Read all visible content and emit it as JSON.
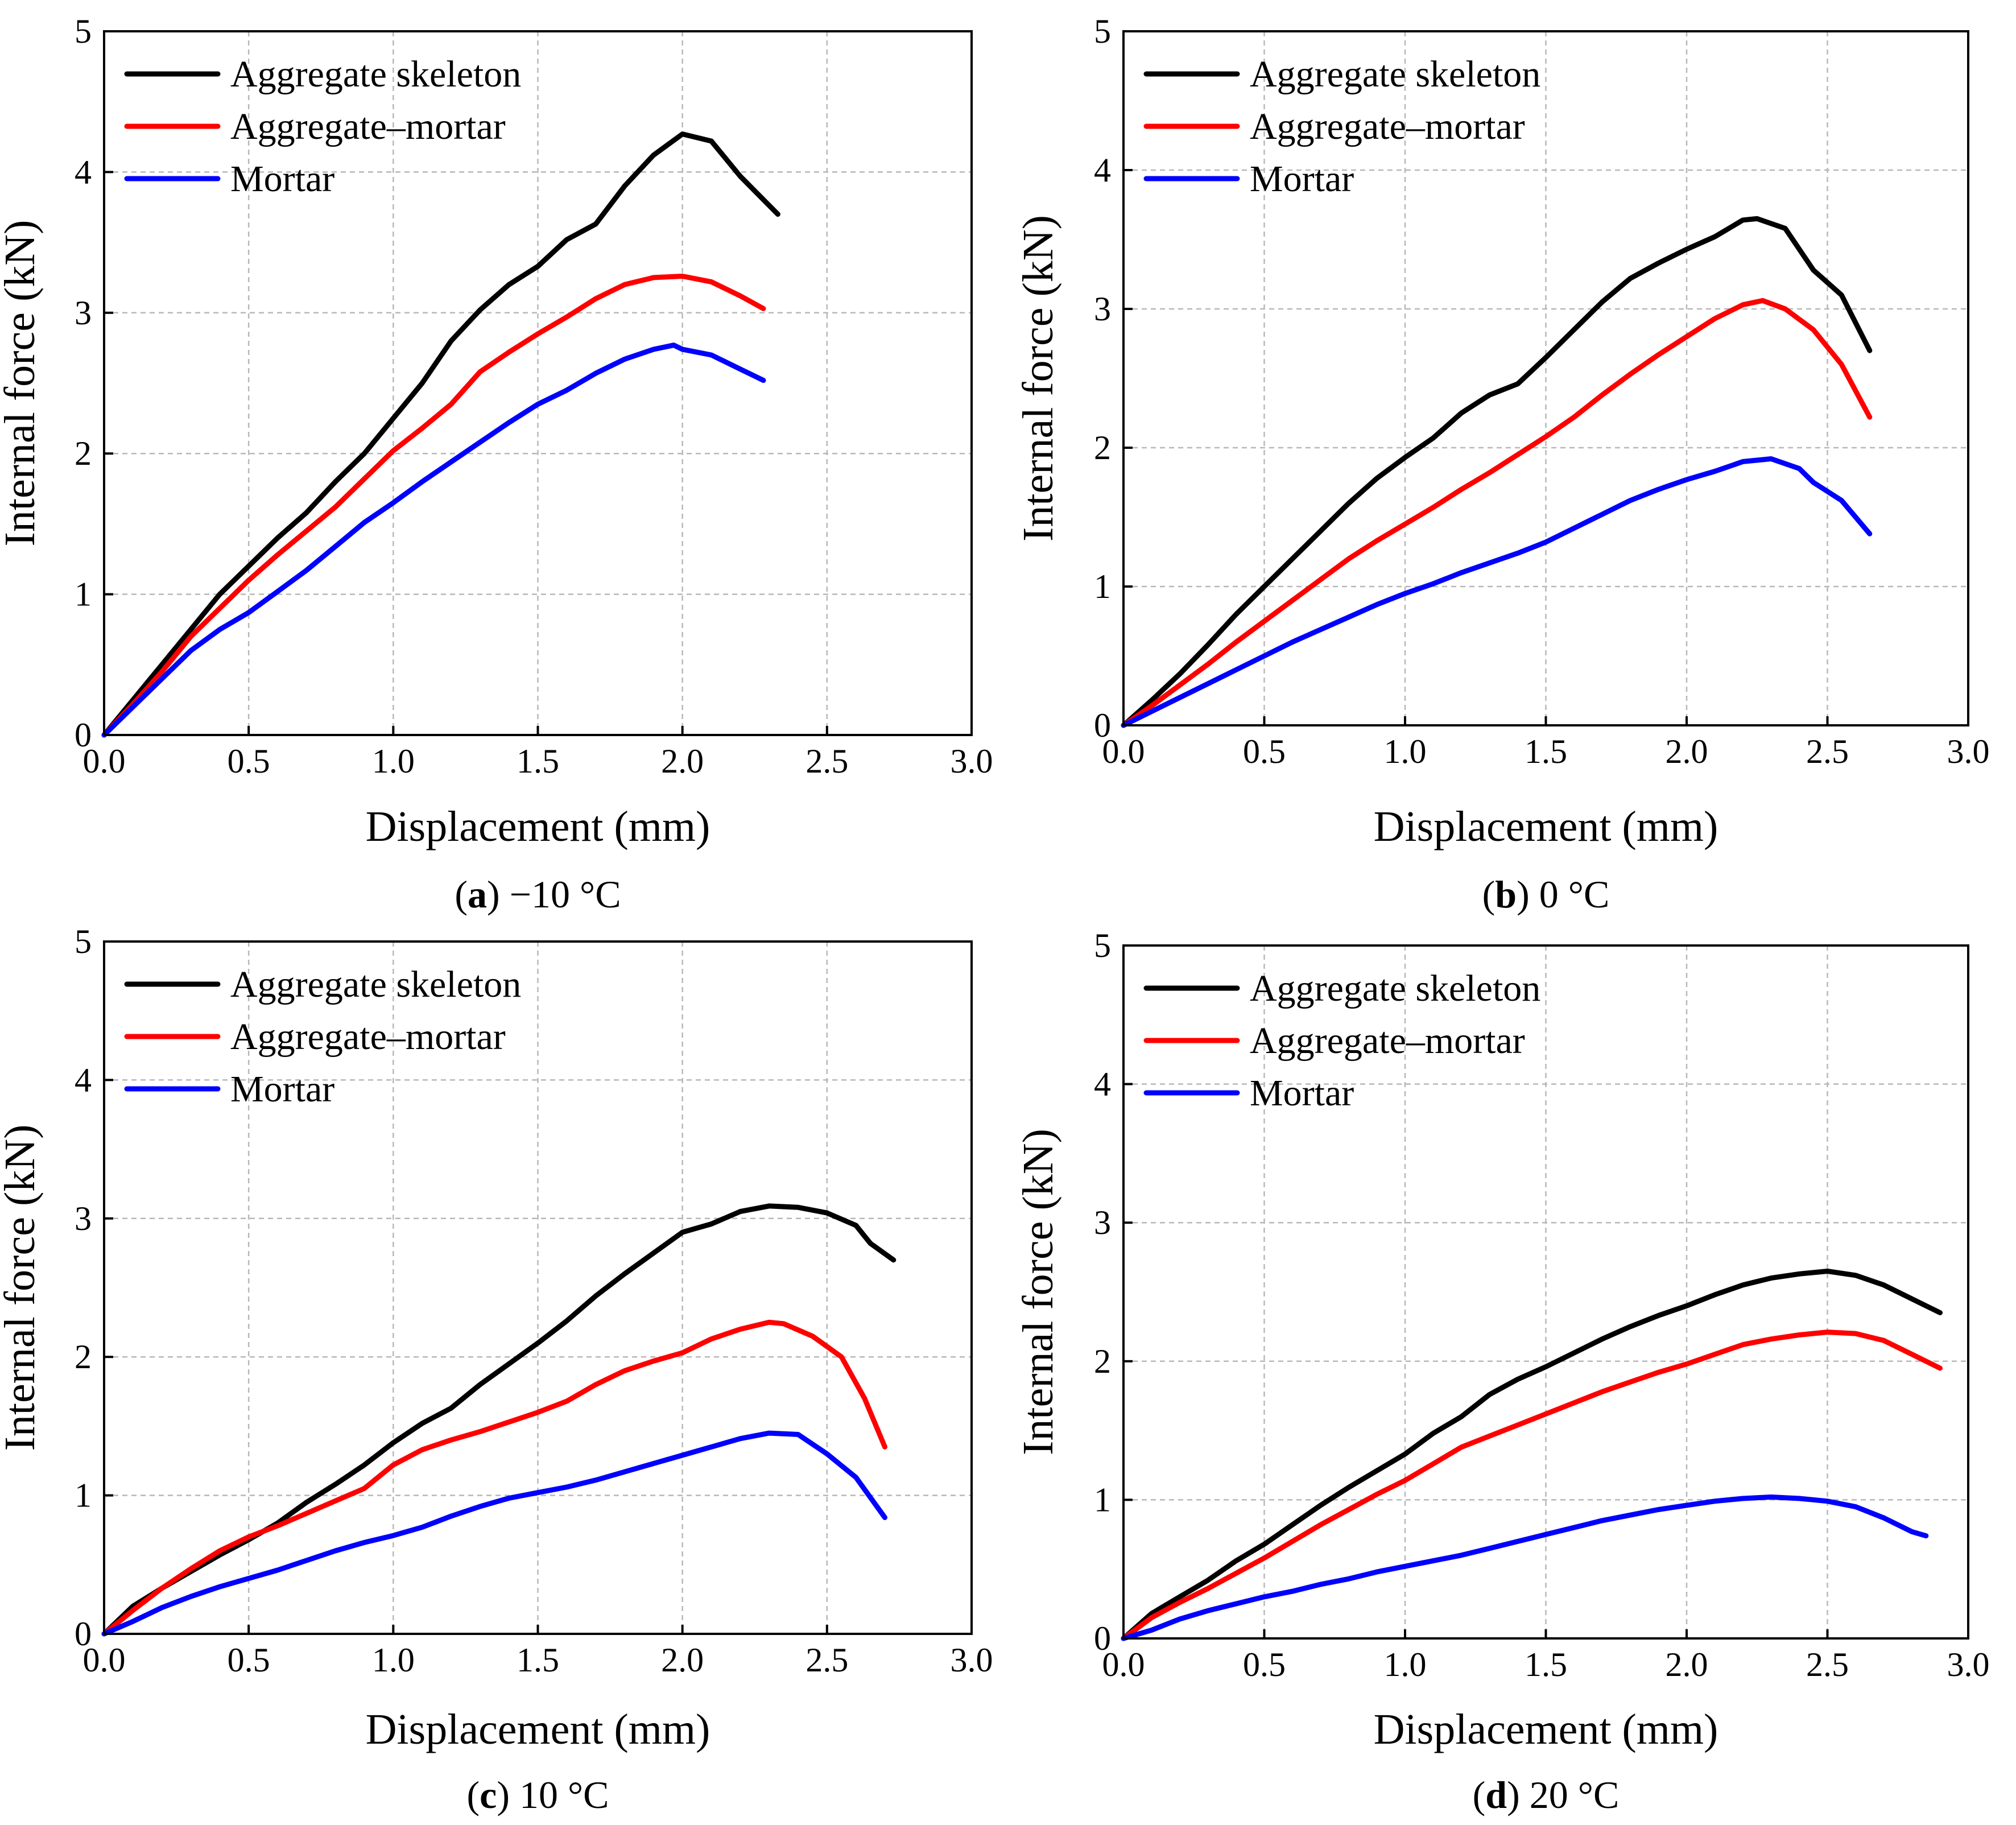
{
  "chart_data": [
    {
      "type": "line",
      "caption_letter": "a",
      "caption_text": " −10 °C",
      "xlabel": "Displacement (mm)",
      "ylabel": "Internal force (kN)",
      "xlim": [
        0,
        3
      ],
      "ylim": [
        0,
        5
      ],
      "xticks": [
        "0.0",
        "0.5",
        "1.0",
        "1.5",
        "2.0",
        "2.5",
        "3.0"
      ],
      "yticks": [
        "0",
        "1",
        "2",
        "3",
        "4",
        "5"
      ],
      "grid": true,
      "legend_position": "top-left",
      "series": [
        {
          "name": "Aggregate skeleton",
          "color": "#000000",
          "x": [
            0,
            0.1,
            0.2,
            0.3,
            0.4,
            0.5,
            0.6,
            0.7,
            0.8,
            0.9,
            1.0,
            1.1,
            1.2,
            1.3,
            1.4,
            1.5,
            1.6,
            1.7,
            1.8,
            1.9,
            2.0,
            2.1,
            2.2,
            2.33
          ],
          "y": [
            0,
            0.25,
            0.5,
            0.75,
            1.0,
            1.2,
            1.4,
            1.58,
            1.8,
            2.0,
            2.25,
            2.5,
            2.8,
            3.02,
            3.2,
            3.33,
            3.52,
            3.63,
            3.9,
            4.12,
            4.27,
            4.22,
            3.97,
            3.7
          ]
        },
        {
          "name": "Aggregate–mortar",
          "color": "#ff0000",
          "x": [
            0,
            0.1,
            0.2,
            0.3,
            0.4,
            0.5,
            0.6,
            0.7,
            0.8,
            0.9,
            1.0,
            1.1,
            1.2,
            1.3,
            1.4,
            1.5,
            1.6,
            1.7,
            1.8,
            1.9,
            2.0,
            2.1,
            2.2,
            2.28
          ],
          "y": [
            0,
            0.22,
            0.45,
            0.7,
            0.9,
            1.1,
            1.28,
            1.45,
            1.62,
            1.82,
            2.02,
            2.18,
            2.35,
            2.58,
            2.72,
            2.85,
            2.97,
            3.1,
            3.2,
            3.25,
            3.26,
            3.22,
            3.12,
            3.03
          ]
        },
        {
          "name": "Mortar",
          "color": "#0000ff",
          "x": [
            0,
            0.1,
            0.2,
            0.3,
            0.4,
            0.5,
            0.6,
            0.7,
            0.8,
            0.9,
            1.0,
            1.1,
            1.2,
            1.3,
            1.4,
            1.5,
            1.6,
            1.7,
            1.8,
            1.9,
            1.97,
            2.0,
            2.1,
            2.2,
            2.28
          ],
          "y": [
            0,
            0.2,
            0.4,
            0.6,
            0.75,
            0.87,
            1.02,
            1.17,
            1.34,
            1.51,
            1.65,
            1.8,
            1.94,
            2.08,
            2.22,
            2.35,
            2.45,
            2.57,
            2.67,
            2.74,
            2.77,
            2.74,
            2.7,
            2.6,
            2.52
          ]
        }
      ]
    },
    {
      "type": "line",
      "caption_letter": "b",
      "caption_text": " 0 °C",
      "xlabel": "Displacement (mm)",
      "ylabel": "Internal force (kN)",
      "xlim": [
        0,
        3
      ],
      "ylim": [
        0,
        5
      ],
      "xticks": [
        "0.0",
        "0.5",
        "1.0",
        "1.5",
        "2.0",
        "2.5",
        "3.0"
      ],
      "yticks": [
        "0",
        "1",
        "2",
        "3",
        "4",
        "5"
      ],
      "grid": true,
      "legend_position": "top-left",
      "series": [
        {
          "name": "Aggregate skeleton",
          "color": "#000000",
          "x": [
            0,
            0.1,
            0.2,
            0.3,
            0.4,
            0.5,
            0.6,
            0.7,
            0.8,
            0.9,
            1.0,
            1.1,
            1.2,
            1.3,
            1.4,
            1.5,
            1.6,
            1.7,
            1.8,
            1.9,
            2.0,
            2.1,
            2.2,
            2.25,
            2.35,
            2.45,
            2.55,
            2.65
          ],
          "y": [
            0,
            0.18,
            0.37,
            0.58,
            0.8,
            1.0,
            1.2,
            1.4,
            1.6,
            1.78,
            1.93,
            2.07,
            2.25,
            2.38,
            2.46,
            2.65,
            2.85,
            3.05,
            3.22,
            3.33,
            3.43,
            3.52,
            3.64,
            3.65,
            3.58,
            3.28,
            3.1,
            2.7
          ]
        },
        {
          "name": "Aggregate–mortar",
          "color": "#ff0000",
          "x": [
            0,
            0.1,
            0.2,
            0.3,
            0.4,
            0.5,
            0.6,
            0.7,
            0.8,
            0.9,
            1.0,
            1.1,
            1.2,
            1.3,
            1.4,
            1.5,
            1.6,
            1.7,
            1.8,
            1.9,
            2.0,
            2.1,
            2.2,
            2.27,
            2.35,
            2.45,
            2.55,
            2.65
          ],
          "y": [
            0,
            0.14,
            0.29,
            0.44,
            0.6,
            0.75,
            0.9,
            1.05,
            1.2,
            1.33,
            1.45,
            1.57,
            1.7,
            1.82,
            1.95,
            2.08,
            2.22,
            2.38,
            2.53,
            2.67,
            2.8,
            2.93,
            3.03,
            3.06,
            3.0,
            2.85,
            2.6,
            2.22
          ]
        },
        {
          "name": "Mortar",
          "color": "#0000ff",
          "x": [
            0,
            0.1,
            0.2,
            0.3,
            0.4,
            0.5,
            0.6,
            0.7,
            0.8,
            0.9,
            1.0,
            1.1,
            1.2,
            1.3,
            1.4,
            1.5,
            1.6,
            1.7,
            1.8,
            1.9,
            2.0,
            2.1,
            2.2,
            2.3,
            2.4,
            2.45,
            2.55,
            2.65
          ],
          "y": [
            0,
            0.1,
            0.2,
            0.3,
            0.4,
            0.5,
            0.6,
            0.69,
            0.78,
            0.87,
            0.95,
            1.02,
            1.1,
            1.17,
            1.24,
            1.32,
            1.42,
            1.52,
            1.62,
            1.7,
            1.77,
            1.83,
            1.9,
            1.92,
            1.85,
            1.75,
            1.62,
            1.38
          ]
        }
      ]
    },
    {
      "type": "line",
      "caption_letter": "c",
      "caption_text": " 10 °C",
      "xlabel": "Displacement (mm)",
      "ylabel": "Internal force (kN)",
      "xlim": [
        0,
        3
      ],
      "ylim": [
        0,
        5
      ],
      "xticks": [
        "0.0",
        "0.5",
        "1.0",
        "1.5",
        "2.0",
        "2.5",
        "3.0"
      ],
      "yticks": [
        "0",
        "1",
        "2",
        "3",
        "4",
        "5"
      ],
      "grid": true,
      "legend_position": "top-left",
      "series": [
        {
          "name": "Aggregate skeleton",
          "color": "#000000",
          "x": [
            0,
            0.1,
            0.2,
            0.3,
            0.4,
            0.5,
            0.6,
            0.7,
            0.8,
            0.9,
            1.0,
            1.1,
            1.2,
            1.3,
            1.4,
            1.5,
            1.6,
            1.7,
            1.8,
            1.9,
            2.0,
            2.1,
            2.2,
            2.3,
            2.4,
            2.5,
            2.6,
            2.65,
            2.73
          ],
          "y": [
            0,
            0.2,
            0.33,
            0.45,
            0.57,
            0.68,
            0.8,
            0.95,
            1.08,
            1.22,
            1.38,
            1.52,
            1.63,
            1.8,
            1.95,
            2.1,
            2.26,
            2.44,
            2.6,
            2.75,
            2.9,
            2.96,
            3.05,
            3.09,
            3.08,
            3.04,
            2.95,
            2.82,
            2.7
          ]
        },
        {
          "name": "Aggregate–mortar",
          "color": "#ff0000",
          "x": [
            0,
            0.1,
            0.2,
            0.3,
            0.4,
            0.5,
            0.6,
            0.7,
            0.8,
            0.9,
            1.0,
            1.1,
            1.2,
            1.3,
            1.4,
            1.5,
            1.6,
            1.7,
            1.8,
            1.9,
            2.0,
            2.1,
            2.2,
            2.3,
            2.35,
            2.45,
            2.55,
            2.63,
            2.7
          ],
          "y": [
            0,
            0.17,
            0.33,
            0.47,
            0.6,
            0.7,
            0.78,
            0.87,
            0.96,
            1.05,
            1.22,
            1.33,
            1.4,
            1.46,
            1.53,
            1.6,
            1.68,
            1.8,
            1.9,
            1.97,
            2.03,
            2.13,
            2.2,
            2.25,
            2.24,
            2.15,
            2.0,
            1.7,
            1.35
          ]
        },
        {
          "name": "Mortar",
          "color": "#0000ff",
          "x": [
            0,
            0.1,
            0.2,
            0.3,
            0.4,
            0.5,
            0.6,
            0.7,
            0.8,
            0.9,
            1.0,
            1.1,
            1.2,
            1.3,
            1.4,
            1.5,
            1.6,
            1.7,
            1.8,
            1.9,
            2.0,
            2.1,
            2.2,
            2.3,
            2.4,
            2.5,
            2.6,
            2.7
          ],
          "y": [
            0,
            0.09,
            0.19,
            0.27,
            0.34,
            0.4,
            0.46,
            0.53,
            0.6,
            0.66,
            0.71,
            0.77,
            0.85,
            0.92,
            0.98,
            1.02,
            1.06,
            1.11,
            1.17,
            1.23,
            1.29,
            1.35,
            1.41,
            1.45,
            1.44,
            1.3,
            1.13,
            0.84
          ]
        }
      ]
    },
    {
      "type": "line",
      "caption_letter": "d",
      "caption_text": " 20 °C",
      "xlabel": "Displacement (mm)",
      "ylabel": "Internal force (kN)",
      "xlim": [
        0,
        3
      ],
      "ylim": [
        0,
        5
      ],
      "xticks": [
        "0.0",
        "0.5",
        "1.0",
        "1.5",
        "2.0",
        "2.5",
        "3.0"
      ],
      "yticks": [
        "0",
        "1",
        "2",
        "3",
        "4",
        "5"
      ],
      "grid": true,
      "legend_position": "top-left",
      "series": [
        {
          "name": "Aggregate skeleton",
          "color": "#000000",
          "x": [
            0,
            0.1,
            0.2,
            0.3,
            0.4,
            0.5,
            0.6,
            0.7,
            0.8,
            0.9,
            1.0,
            1.1,
            1.2,
            1.3,
            1.4,
            1.5,
            1.6,
            1.7,
            1.8,
            1.9,
            2.0,
            2.1,
            2.2,
            2.3,
            2.4,
            2.5,
            2.6,
            2.7,
            2.8,
            2.9
          ],
          "y": [
            0,
            0.18,
            0.3,
            0.42,
            0.56,
            0.68,
            0.82,
            0.96,
            1.09,
            1.21,
            1.33,
            1.48,
            1.6,
            1.76,
            1.87,
            1.96,
            2.06,
            2.16,
            2.25,
            2.33,
            2.4,
            2.48,
            2.55,
            2.6,
            2.63,
            2.65,
            2.62,
            2.55,
            2.45,
            2.35
          ]
        },
        {
          "name": "Aggregate–mortar",
          "color": "#ff0000",
          "x": [
            0,
            0.1,
            0.2,
            0.3,
            0.4,
            0.5,
            0.6,
            0.7,
            0.8,
            0.9,
            1.0,
            1.1,
            1.2,
            1.3,
            1.4,
            1.5,
            1.6,
            1.7,
            1.8,
            1.9,
            2.0,
            2.1,
            2.2,
            2.3,
            2.4,
            2.5,
            2.6,
            2.7,
            2.8,
            2.9
          ],
          "y": [
            0,
            0.15,
            0.26,
            0.36,
            0.47,
            0.58,
            0.7,
            0.82,
            0.93,
            1.04,
            1.14,
            1.26,
            1.38,
            1.46,
            1.54,
            1.62,
            1.7,
            1.78,
            1.85,
            1.92,
            1.98,
            2.05,
            2.12,
            2.16,
            2.19,
            2.21,
            2.2,
            2.15,
            2.05,
            1.95
          ]
        },
        {
          "name": "Mortar",
          "color": "#0000ff",
          "x": [
            0,
            0.1,
            0.2,
            0.3,
            0.4,
            0.5,
            0.6,
            0.7,
            0.8,
            0.9,
            1.0,
            1.1,
            1.2,
            1.3,
            1.4,
            1.5,
            1.6,
            1.7,
            1.8,
            1.9,
            2.0,
            2.1,
            2.2,
            2.3,
            2.4,
            2.5,
            2.6,
            2.7,
            2.8,
            2.85
          ],
          "y": [
            0,
            0.06,
            0.14,
            0.2,
            0.25,
            0.3,
            0.34,
            0.39,
            0.43,
            0.48,
            0.52,
            0.56,
            0.6,
            0.65,
            0.7,
            0.75,
            0.8,
            0.85,
            0.89,
            0.93,
            0.96,
            0.99,
            1.01,
            1.02,
            1.01,
            0.99,
            0.95,
            0.87,
            0.77,
            0.74
          ]
        }
      ]
    }
  ]
}
